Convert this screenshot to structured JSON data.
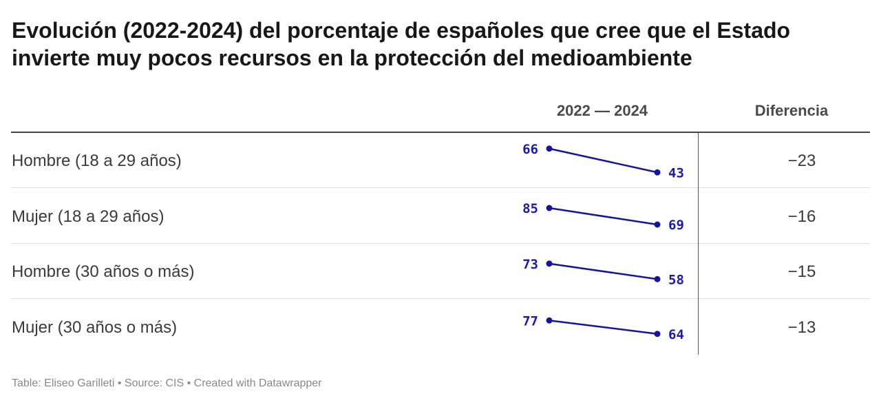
{
  "title": "Evolución (2022-2024) del porcentaje de españoles que cree que el Estado invierte muy pocos recursos en la protección del medioambiente",
  "columns": {
    "years": "2022 — 2024",
    "difference": "Diferencia"
  },
  "colors": {
    "line": "#14149e",
    "label": "#1a1ab0"
  },
  "chart_data": {
    "type": "table",
    "title": "Evolución (2022-2024) del porcentaje de españoles que cree que el Estado invierte muy pocos recursos en la protección del medioambiente",
    "columns": [
      "2022 — 2024",
      "Diferencia"
    ],
    "rows": [
      {
        "label": "Hombre (18 a 29 años)",
        "v2022": 66,
        "v2024": 43,
        "diff": "−23"
      },
      {
        "label": "Mujer (18 a 29 años)",
        "v2022": 85,
        "v2024": 69,
        "diff": "−16"
      },
      {
        "label": "Hombre (30 años o más)",
        "v2022": 73,
        "v2024": 58,
        "diff": "−15"
      },
      {
        "label": "Mujer (30 años o más)",
        "v2022": 77,
        "v2024": 64,
        "diff": "−13"
      }
    ]
  },
  "footer": "Table: Eliseo Garilleti • Source: CIS • Created with Datawrapper"
}
